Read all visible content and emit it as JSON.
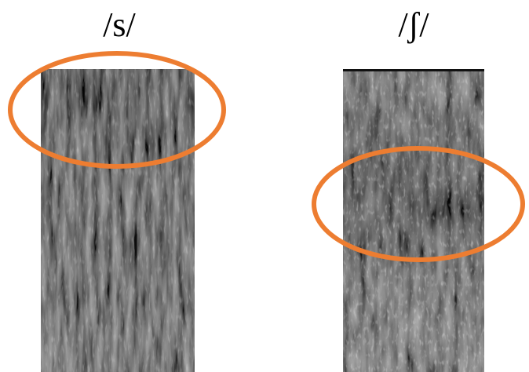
{
  "panels": [
    {
      "id": "s",
      "label": "/s/"
    },
    {
      "id": "sh",
      "label": "/ʃ/"
    }
  ],
  "colors": {
    "highlight": "#ED7D31",
    "text": "#000000"
  }
}
